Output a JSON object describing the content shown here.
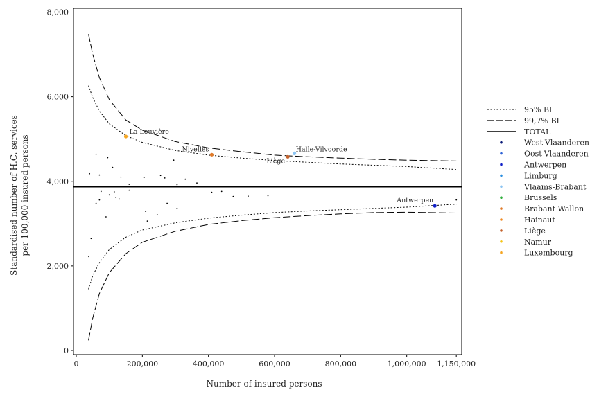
{
  "chart_data": {
    "type": "scatter",
    "subtype": "funnel plot",
    "xlabel": "Number of insured persons",
    "ylabel": [
      "Standardised number of H.C. services",
      "per 100,000 insured persons"
    ],
    "xlim": [
      0,
      1200000
    ],
    "ylim": [
      0,
      8000
    ],
    "x_ticks": [
      0,
      200000,
      400000,
      600000,
      800000,
      1000000,
      1150000
    ],
    "x_tick_labels": [
      "0",
      "200,000",
      "400,000",
      "600,000",
      "800,000",
      "1,000,000",
      "1,150,000"
    ],
    "y_ticks": [
      0,
      2000,
      4000,
      6000,
      8000
    ],
    "y_tick_labels": [
      "0",
      "2,000",
      "4,000",
      "6,000",
      "8,000"
    ],
    "grid": false,
    "legend_position": "right",
    "mean": 3870,
    "limits": {
      "x": [
        37000,
        50000,
        70000,
        100000,
        150000,
        200000,
        300000,
        400000,
        500000,
        600000,
        700000,
        800000,
        900000,
        1000000,
        1150000
      ],
      "ci95_upper": [
        6260,
        5980,
        5660,
        5360,
        5080,
        4920,
        4730,
        4620,
        4550,
        4490,
        4450,
        4410,
        4380,
        4350,
        4280
      ],
      "ci95_lower": [
        1450,
        1770,
        2080,
        2390,
        2680,
        2850,
        3020,
        3130,
        3200,
        3260,
        3300,
        3330,
        3360,
        3390,
        3460
      ],
      "ci997_upper": [
        7480,
        7000,
        6450,
        5930,
        5450,
        5210,
        4940,
        4790,
        4700,
        4620,
        4580,
        4550,
        4520,
        4500,
        4480
      ],
      "ci997_lower": [
        240,
        770,
        1350,
        1840,
        2290,
        2560,
        2820,
        2980,
        3070,
        3140,
        3190,
        3230,
        3260,
        3270,
        3250
      ]
    },
    "points": [
      {
        "x": 40000,
        "y": 4180
      },
      {
        "x": 60000,
        "y": 4640
      },
      {
        "x": 70000,
        "y": 4150
      },
      {
        "x": 95000,
        "y": 4560
      },
      {
        "x": 110000,
        "y": 4330
      },
      {
        "x": 135000,
        "y": 4100
      },
      {
        "x": 160000,
        "y": 3930
      },
      {
        "x": 205000,
        "y": 4090
      },
      {
        "x": 255000,
        "y": 4140
      },
      {
        "x": 268000,
        "y": 4080
      },
      {
        "x": 330000,
        "y": 4050
      },
      {
        "x": 365000,
        "y": 3960
      },
      {
        "x": 295000,
        "y": 4500
      },
      {
        "x": 305000,
        "y": 3920
      },
      {
        "x": 75000,
        "y": 3760
      },
      {
        "x": 100000,
        "y": 3680
      },
      {
        "x": 115000,
        "y": 3750
      },
      {
        "x": 120000,
        "y": 3620
      },
      {
        "x": 130000,
        "y": 3580
      },
      {
        "x": 160000,
        "y": 3790
      },
      {
        "x": 60000,
        "y": 3480
      },
      {
        "x": 70000,
        "y": 3560
      },
      {
        "x": 90000,
        "y": 3160
      },
      {
        "x": 210000,
        "y": 3290
      },
      {
        "x": 215000,
        "y": 3060
      },
      {
        "x": 245000,
        "y": 3210
      },
      {
        "x": 275000,
        "y": 3480
      },
      {
        "x": 305000,
        "y": 3360
      },
      {
        "x": 410000,
        "y": 3740
      },
      {
        "x": 440000,
        "y": 3760
      },
      {
        "x": 475000,
        "y": 3640
      },
      {
        "x": 520000,
        "y": 3650
      },
      {
        "x": 580000,
        "y": 3660
      },
      {
        "x": 1150000,
        "y": 3560
      },
      {
        "x": 45000,
        "y": 2650
      },
      {
        "x": 38000,
        "y": 2220
      }
    ],
    "labeled_points": [
      {
        "name": "La Louvière",
        "x": 150000,
        "y": 5060,
        "color": "#f5a623"
      },
      {
        "name": "Nivelles",
        "x": 410000,
        "y": 4630,
        "color": "#e07b2a"
      },
      {
        "name": "Liège",
        "x": 640000,
        "y": 4580,
        "color": "#c4622d"
      },
      {
        "name": "Halle-Vilvoorde",
        "x": 660000,
        "y": 4660,
        "color": "#8cc4f2"
      },
      {
        "name": "Antwerpen",
        "x": 1085000,
        "y": 3420,
        "color": "#1020c8"
      }
    ]
  },
  "legend": {
    "items": [
      {
        "label": "95% BI",
        "kind": "dotted"
      },
      {
        "label": "99,7% BI",
        "kind": "dashed"
      },
      {
        "label": "TOTAL",
        "kind": "solid"
      },
      {
        "label": "West-Vlaanderen",
        "kind": "dot",
        "color": "#0a1a78"
      },
      {
        "label": "Oost-Vlaanderen",
        "kind": "dot",
        "color": "#2f63d6"
      },
      {
        "label": "Antwerpen",
        "kind": "dot",
        "color": "#1020c8"
      },
      {
        "label": "Limburg",
        "kind": "dot",
        "color": "#2b8fe0"
      },
      {
        "label": "Vlaams-Brabant",
        "kind": "dot",
        "color": "#8cc4f2"
      },
      {
        "label": "Brussels",
        "kind": "dot",
        "color": "#33b040"
      },
      {
        "label": "Brabant Wallon",
        "kind": "dot",
        "color": "#e07b2a"
      },
      {
        "label": "Hainaut",
        "kind": "dot",
        "color": "#f08a24"
      },
      {
        "label": "Liège",
        "kind": "dot",
        "color": "#c4622d"
      },
      {
        "label": "Namur",
        "kind": "dot",
        "color": "#f5c518"
      },
      {
        "label": "Luxembourg",
        "kind": "dot",
        "color": "#f5a623"
      }
    ]
  }
}
